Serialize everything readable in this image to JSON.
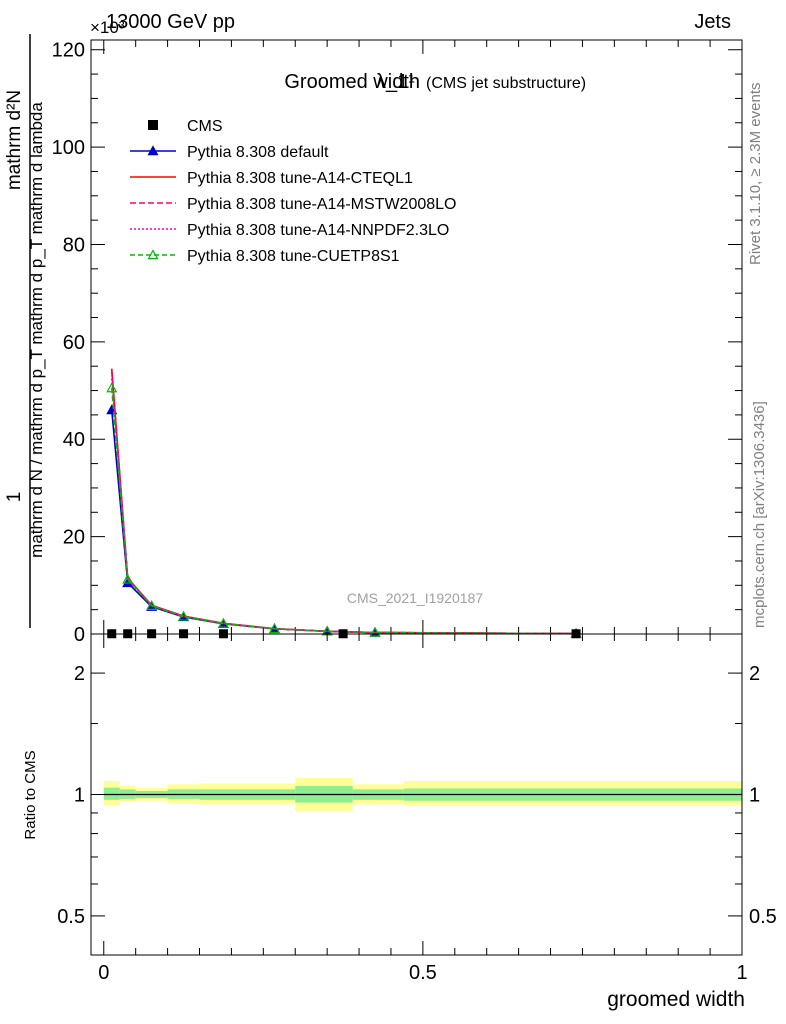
{
  "header": {
    "left": "13000 GeV pp",
    "right": "Jets",
    "exponent": "×10³"
  },
  "side": {
    "rivet": "Rivet 3.1.10, ≥ 2.3M events",
    "mcplots": "mcplots.cern.ch [arXiv:1306.3436]"
  },
  "chart_data": [
    {
      "type": "line",
      "title": "Groomed width",
      "title_math": "λ_1¹",
      "subtitle": "(CMS jet substructure)",
      "watermark": "CMS_2021_I1920187",
      "ylabel_num": "mathrm d²N",
      "ylabel_den": "mathrm d N / mathrm d p_T mathrm d p_T mathrm d lambda",
      "ylabel_prefix": "1",
      "ylim": [
        0,
        122
      ],
      "y_scale_note": "x10^3",
      "yticks": [
        0,
        20,
        40,
        60,
        80,
        100,
        120
      ],
      "xlim": [
        -0.02,
        1.0
      ],
      "legend_position": "top-left",
      "series": [
        {
          "name": "CMS",
          "color": "#000000",
          "style": "marker-square",
          "x": [
            0.0125,
            0.0375,
            0.075,
            0.125,
            0.1875,
            0.375,
            0.74
          ],
          "y": [
            0.05,
            0.05,
            0.05,
            0.05,
            0.05,
            0.05,
            0.05
          ]
        },
        {
          "name": "Pythia 8.308 default",
          "color": "#0000cc",
          "style": "solid-triangle",
          "x": [
            0.0125,
            0.0375,
            0.075,
            0.125,
            0.1875,
            0.2675,
            0.35,
            0.425,
            0.74
          ],
          "y": [
            46.0,
            10.5,
            5.6,
            3.5,
            2.1,
            1.05,
            0.55,
            0.3,
            0.08
          ]
        },
        {
          "name": "Pythia 8.308 tune-A14-CTEQL1",
          "color": "#ff0000",
          "style": "solid",
          "x": [
            0.0125,
            0.0375,
            0.075,
            0.125,
            0.1875,
            0.2675,
            0.35,
            0.425,
            0.74
          ],
          "y": [
            54.5,
            11.5,
            5.9,
            3.7,
            2.2,
            1.1,
            0.55,
            0.3,
            0.08
          ]
        },
        {
          "name": "Pythia 8.308 tune-A14-MSTW2008LO",
          "color": "#ff0066",
          "style": "dashed",
          "x": [
            0.0125,
            0.0375,
            0.075,
            0.125,
            0.1875,
            0.2675,
            0.35,
            0.425,
            0.74
          ],
          "y": [
            54.0,
            11.4,
            5.85,
            3.65,
            2.2,
            1.1,
            0.55,
            0.3,
            0.08
          ]
        },
        {
          "name": "Pythia 8.308 tune-A14-NNPDF2.3LO",
          "color": "#ff00cc",
          "style": "dotted",
          "x": [
            0.0125,
            0.0375,
            0.075,
            0.125,
            0.1875,
            0.2675,
            0.35,
            0.425,
            0.74
          ],
          "y": [
            52.5,
            11.3,
            5.8,
            3.6,
            2.15,
            1.08,
            0.55,
            0.3,
            0.08
          ]
        },
        {
          "name": "Pythia 8.308 tune-CUETP8S1",
          "color": "#00bb00",
          "style": "dashed-open-triangle",
          "x": [
            0.0125,
            0.0375,
            0.075,
            0.125,
            0.1875,
            0.2675,
            0.35,
            0.425,
            0.74
          ],
          "y": [
            50.5,
            11.2,
            5.8,
            3.6,
            2.15,
            1.08,
            0.55,
            0.3,
            0.08
          ]
        }
      ]
    },
    {
      "type": "area",
      "ylabel": "Ratio to CMS",
      "xlabel": "groomed width",
      "y_scale": "log",
      "ylim": [
        0.4,
        2.5
      ],
      "yticks": [
        0.5,
        1,
        2
      ],
      "xlim": [
        -0.02,
        1.0
      ],
      "xticks": [
        0,
        0.5,
        1
      ],
      "bands": {
        "stat_color": "#90ee90",
        "total_color": "#ffff99",
        "bins": [
          {
            "lo": 0.0,
            "hi": 0.025,
            "stat": [
              0.97,
              1.04
            ],
            "total": [
              0.94,
              1.08
            ]
          },
          {
            "lo": 0.025,
            "hi": 0.05,
            "stat": [
              0.975,
              1.03
            ],
            "total": [
              0.96,
              1.05
            ]
          },
          {
            "lo": 0.05,
            "hi": 0.1,
            "stat": [
              0.98,
              1.02
            ],
            "total": [
              0.965,
              1.04
            ]
          },
          {
            "lo": 0.1,
            "hi": 0.15,
            "stat": [
              0.975,
              1.03
            ],
            "total": [
              0.95,
              1.06
            ]
          },
          {
            "lo": 0.15,
            "hi": 0.3,
            "stat": [
              0.97,
              1.03
            ],
            "total": [
              0.945,
              1.065
            ]
          },
          {
            "lo": 0.3,
            "hi": 0.39,
            "stat": [
              0.955,
              1.05
            ],
            "total": [
              0.91,
              1.1
            ]
          },
          {
            "lo": 0.39,
            "hi": 0.47,
            "stat": [
              0.97,
              1.03
            ],
            "total": [
              0.945,
              1.06
            ]
          },
          {
            "lo": 0.47,
            "hi": 1.0,
            "stat": [
              0.965,
              1.035
            ],
            "total": [
              0.94,
              1.08
            ]
          }
        ]
      },
      "series": [
        {
          "name": "CMS",
          "x": [
            0.0,
            1.0
          ],
          "y": [
            1.0,
            1.0
          ],
          "color": "#000000"
        }
      ]
    }
  ]
}
